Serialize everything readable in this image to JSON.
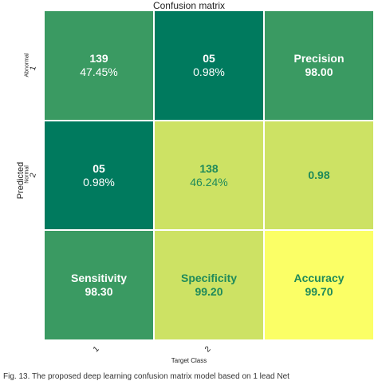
{
  "chart_data": {
    "type": "heatmap",
    "title": "Confusion matrix",
    "xlabel": "Target Class",
    "ylabel": "Predicted",
    "x_ticks": [
      "1",
      "2"
    ],
    "y_ticks": [
      "1",
      "2"
    ],
    "y_tick_names": [
      "Abnormal",
      "Normal"
    ],
    "rows": [
      [
        {
          "line1": "139",
          "line2": "47.45%",
          "color": "#3a9a62",
          "text_color": "#ffffff"
        },
        {
          "line1": "05",
          "line2": "0.98%",
          "color": "#007a5e",
          "text_color": "#ffffff"
        },
        {
          "line1": "Precision",
          "line2": "98.00",
          "color": "#3a9a62",
          "text_color": "#ffffff"
        }
      ],
      [
        {
          "line1": "05",
          "line2": "0.98%",
          "color": "#007a5e",
          "text_color": "#ffffff"
        },
        {
          "line1": "138",
          "line2": "46.24%",
          "color": "#cde264",
          "text_color": "#1f8a5a"
        },
        {
          "line1": "",
          "line2": "0.98",
          "color": "#cde264",
          "text_color": "#1f8a5a"
        }
      ],
      [
        {
          "line1": "Sensitivity",
          "line2": "98.30",
          "color": "#3a9a62",
          "text_color": "#ffffff"
        },
        {
          "line1": "Specificity",
          "line2": "99.20",
          "color": "#cde264",
          "text_color": "#1f8a5a"
        },
        {
          "line1": "Accuracy",
          "line2": "99.70",
          "color": "#fbff66",
          "text_color": "#1f8a5a"
        }
      ]
    ]
  },
  "caption": "Fig. 13. The proposed deep learning confusion matrix model based on 1 lead Net"
}
